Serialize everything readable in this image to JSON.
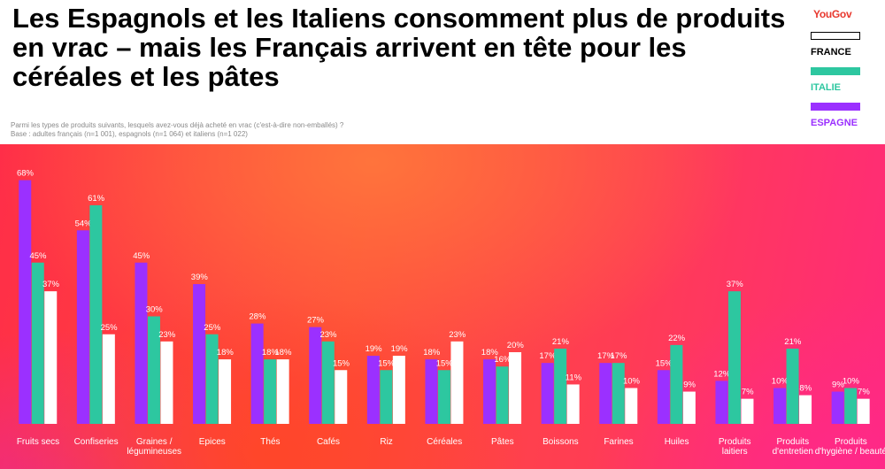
{
  "header": {
    "title": "Les Espagnols et les Italiens consomment plus de produits en vrac – mais les Français arrivent en tête pour les céréales et les pâtes",
    "logo_text": "YouGov",
    "question": "Parmi les types de produits suivants, lesquels avez-vous déjà acheté en vrac (c'est-à-dire non-emballés) ?",
    "base": "Base : adultes français (n=1 001), espagnols (n=1 064) et italiens (n=1 022)"
  },
  "colors": {
    "espagne": "#9b30ff",
    "italie": "#2dc7a0",
    "france": "#ffffff",
    "logo": "#e8392f"
  },
  "chart_data": {
    "type": "bar",
    "title": "",
    "xlabel": "",
    "ylabel": "",
    "ylim": [
      0,
      75
    ],
    "grid": false,
    "legend_position": "top-right",
    "categories": [
      "Fruits secs",
      "Confiseries",
      "Graines / légumineuses",
      "Epices",
      "Thés",
      "Cafés",
      "Riz",
      "Céréales",
      "Pâtes",
      "Boissons",
      "Farines",
      "Huiles",
      "Produits laitiers",
      "Produits d'entretien",
      "Produits d'hygiène / beauté"
    ],
    "value_suffix": "%",
    "series": [
      {
        "name": "ESPAGNE",
        "color": "#9b30ff",
        "values": [
          68,
          54,
          45,
          39,
          28,
          27,
          19,
          18,
          18,
          17,
          17,
          15,
          12,
          10,
          9
        ]
      },
      {
        "name": "ITALIE",
        "color": "#2dc7a0",
        "values": [
          45,
          61,
          30,
          25,
          18,
          23,
          15,
          15,
          16,
          21,
          17,
          22,
          37,
          21,
          10
        ]
      },
      {
        "name": "FRANCE",
        "color": "#ffffff",
        "values": [
          37,
          25,
          23,
          18,
          18,
          15,
          19,
          23,
          20,
          11,
          10,
          9,
          7,
          8,
          7
        ]
      }
    ]
  },
  "legend": [
    {
      "label": "FRANCE",
      "color": "#ffffff",
      "text_color": "#000000"
    },
    {
      "label": "ITALIE",
      "color": "#2dc7a0",
      "text_color": "#2dc7a0"
    },
    {
      "label": "ESPAGNE",
      "color": "#9b30ff",
      "text_color": "#9b30ff"
    }
  ]
}
